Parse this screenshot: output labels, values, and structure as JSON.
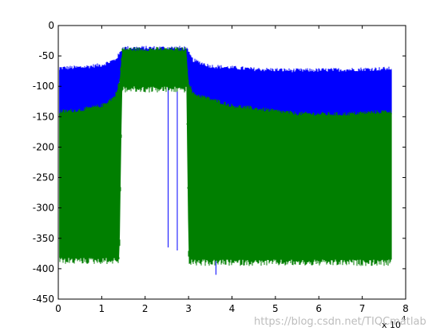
{
  "chart_data": {
    "type": "area",
    "xlim": [
      0,
      8
    ],
    "ylim": [
      -450,
      0
    ],
    "x_ticks": [
      0,
      1,
      2,
      3,
      4,
      5,
      6,
      7,
      8
    ],
    "y_ticks": [
      0,
      -50,
      -100,
      -150,
      -200,
      -250,
      -300,
      -350,
      -400,
      -450
    ],
    "x_exponent_label": "x 10",
    "x_exponent_power": "4",
    "grid": false,
    "legend": "none",
    "series": [
      {
        "color": "#0000ff",
        "envelope_upper": [
          [
            0.02,
            -73
          ],
          [
            0.5,
            -72
          ],
          [
            1.0,
            -68
          ],
          [
            1.3,
            -60
          ],
          [
            1.41,
            -50
          ],
          [
            1.47,
            -40
          ],
          [
            2.95,
            -40
          ],
          [
            3.0,
            -48
          ],
          [
            3.1,
            -60
          ],
          [
            3.5,
            -70
          ],
          [
            4.5,
            -75
          ],
          [
            5.5,
            -77
          ],
          [
            6.5,
            -76
          ],
          [
            7.68,
            -74
          ]
        ],
        "envelope_lower": [
          [
            0.02,
            -150
          ],
          [
            1.0,
            -150
          ],
          [
            1.3,
            -140
          ],
          [
            1.41,
            -90
          ],
          [
            1.47,
            -80
          ],
          [
            2.95,
            -80
          ],
          [
            3.0,
            -95
          ],
          [
            3.1,
            -120
          ],
          [
            4.0,
            -140
          ],
          [
            5.5,
            -148
          ],
          [
            6.5,
            -149
          ],
          [
            7.68,
            -146
          ]
        ],
        "spikes": [
          [
            2.53,
            -365
          ],
          [
            2.74,
            -370
          ],
          [
            3.63,
            -410
          ],
          [
            5.35,
            -125
          ],
          [
            5.95,
            -125
          ],
          [
            6.25,
            -125
          ]
        ]
      },
      {
        "color": "#007f00",
        "envelope_upper": [
          [
            0.02,
            -145
          ],
          [
            0.5,
            -142
          ],
          [
            1.0,
            -135
          ],
          [
            1.3,
            -120
          ],
          [
            1.41,
            -95
          ],
          [
            1.47,
            -42
          ],
          [
            2.95,
            -42
          ],
          [
            3.0,
            -95
          ],
          [
            3.1,
            -115
          ],
          [
            4.0,
            -135
          ],
          [
            5.5,
            -148
          ],
          [
            6.5,
            -149
          ],
          [
            7.68,
            -144
          ]
        ],
        "envelope_lower": [
          [
            0.02,
            -382
          ],
          [
            1.41,
            -382
          ],
          [
            1.47,
            -100
          ],
          [
            2.95,
            -100
          ],
          [
            3.0,
            -385
          ],
          [
            7.68,
            -385
          ]
        ]
      }
    ]
  },
  "watermark": "https://blog.csdn.net/TIQCmatlab"
}
